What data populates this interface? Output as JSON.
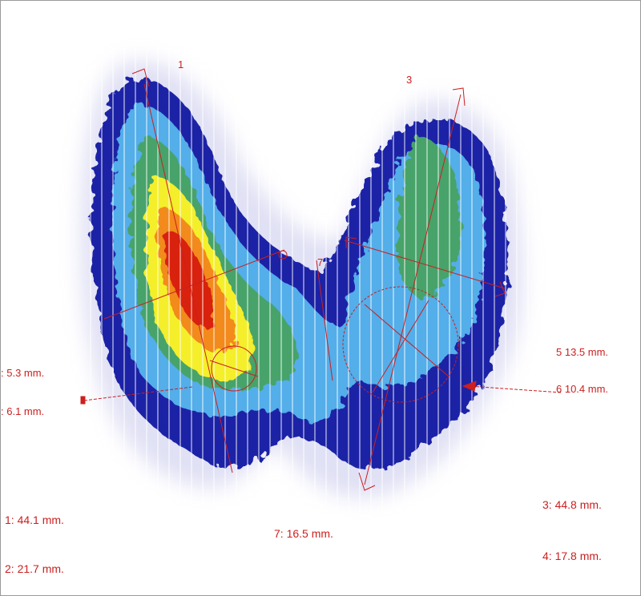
{
  "colors": {
    "background": "#ffffff",
    "halo": "#c9c9ec",
    "dark_blue": "#1b23a6",
    "light_blue": "#53aeea",
    "green": "#46a36a",
    "yellow": "#f4ef2a",
    "orange": "#f28a1a",
    "red": "#d8220e",
    "annotation": "#cc1f1f"
  },
  "lobe_labels": {
    "right_lobe": "1",
    "left_lobe": "3",
    "isthmus": "7"
  },
  "measurements": {
    "m5_left": ": 5.3 mm.",
    "m6_left": ": 6.1 mm.",
    "m1": "1: 44.1 mm.",
    "m2": "2: 21.7 mm.",
    "m7": "7: 16.5 mm.",
    "m3": "3: 44.8 mm.",
    "m4": "4: 17.8 mm.",
    "m5_right": "5  13.5 mm.",
    "m6_right": "6  10.4 mm."
  }
}
